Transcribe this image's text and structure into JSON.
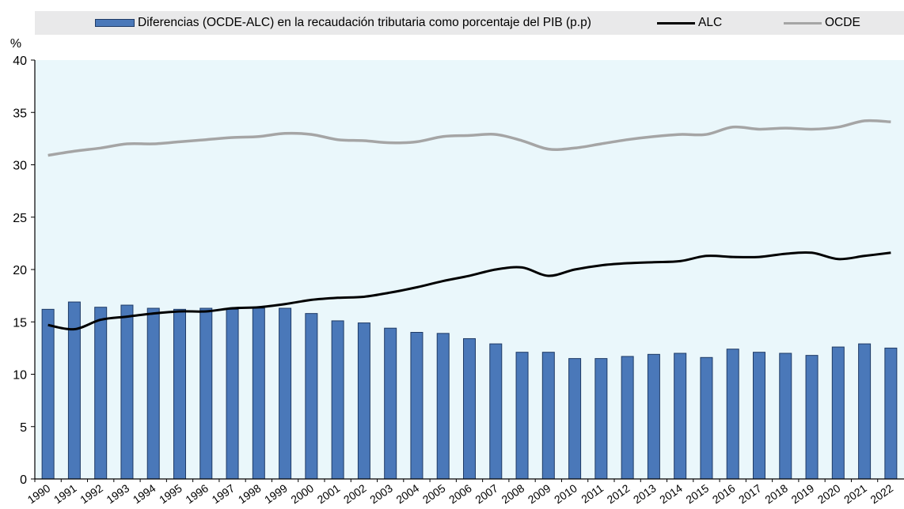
{
  "chart_data": {
    "type": "bar",
    "ylabel": "%",
    "ylim": [
      0,
      40
    ],
    "yticks": [
      0,
      5,
      10,
      15,
      20,
      25,
      30,
      35,
      40
    ],
    "grid": false,
    "legend_placement": "top",
    "categories": [
      "1990",
      "1991",
      "1992",
      "1993",
      "1994",
      "1995",
      "1996",
      "1997",
      "1998",
      "1999",
      "2000",
      "2001",
      "2002",
      "2003",
      "2004",
      "2005",
      "2006",
      "2007",
      "2008",
      "2009",
      "2010",
      "2011",
      "2012",
      "2013",
      "2014",
      "2015",
      "2016",
      "2017",
      "2018",
      "2019",
      "2020",
      "2021",
      "2022"
    ],
    "series": [
      {
        "name": "Diferencias (OCDE-ALC) en la recaudación tributaria como porcentaje del PIB (p.p)",
        "type": "bar",
        "color": "#4a78b9",
        "values": [
          16.2,
          16.9,
          16.4,
          16.6,
          16.3,
          16.2,
          16.3,
          16.2,
          16.3,
          16.3,
          15.8,
          15.1,
          14.9,
          14.4,
          14.0,
          13.9,
          13.4,
          12.9,
          12.1,
          12.1,
          11.5,
          11.5,
          11.7,
          11.9,
          12.0,
          11.6,
          12.4,
          12.1,
          12.0,
          11.8,
          12.6,
          12.9,
          12.5
        ]
      },
      {
        "name": "ALC",
        "type": "line",
        "color": "#000000",
        "values": [
          14.7,
          14.3,
          15.2,
          15.5,
          15.8,
          16.0,
          16.0,
          16.3,
          16.4,
          16.7,
          17.1,
          17.3,
          17.4,
          17.8,
          18.3,
          18.9,
          19.4,
          20.0,
          20.2,
          19.4,
          20.0,
          20.4,
          20.6,
          20.7,
          20.8,
          21.3,
          21.2,
          21.2,
          21.5,
          21.6,
          21.0,
          21.3,
          21.6
        ]
      },
      {
        "name": "OCDE",
        "type": "line",
        "color": "#a5a5a5",
        "values": [
          30.9,
          31.3,
          31.6,
          32.0,
          32.0,
          32.2,
          32.4,
          32.6,
          32.7,
          33.0,
          32.9,
          32.4,
          32.3,
          32.1,
          32.2,
          32.7,
          32.8,
          32.9,
          32.3,
          31.5,
          31.6,
          32.0,
          32.4,
          32.7,
          32.9,
          32.9,
          33.6,
          33.4,
          33.5,
          33.4,
          33.6,
          34.2,
          34.1
        ]
      }
    ]
  }
}
